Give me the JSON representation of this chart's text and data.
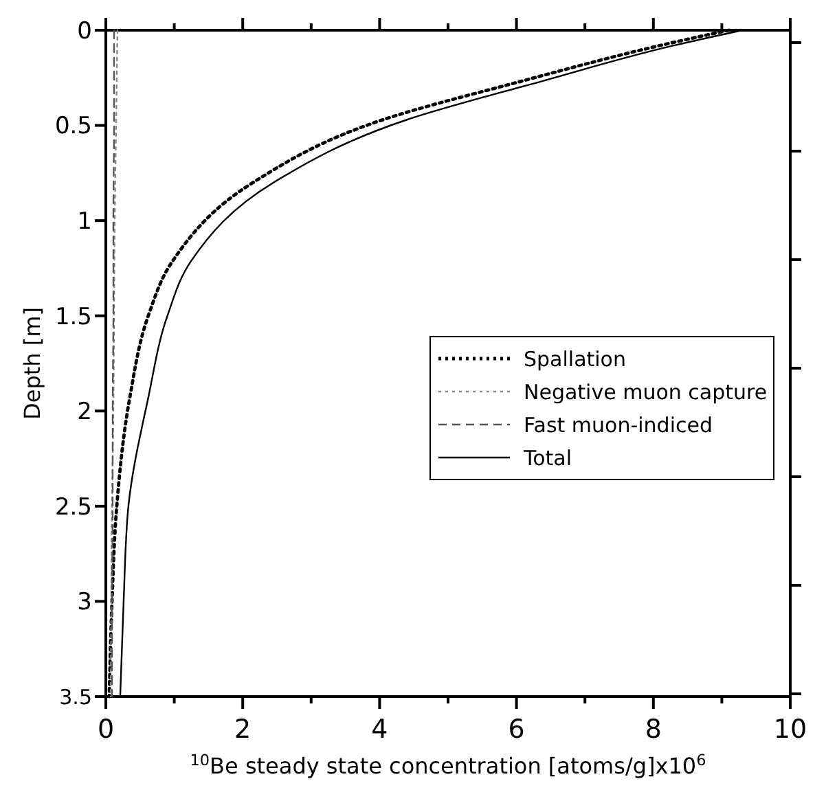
{
  "chart_data": {
    "type": "line",
    "xlabel": "$^{10}$Be steady state concentration [atoms/g]x10$^{6}$",
    "ylabel": "Depth [m]",
    "xlim": [
      0,
      10
    ],
    "xticks": [
      0,
      {
        "value": 1,
        "label": null
      },
      2,
      {
        "value": 3,
        "label": null
      },
      4,
      {
        "value": 5,
        "label": null
      },
      6,
      {
        "value": 7,
        "label": null
      },
      8,
      {
        "value": 9,
        "label": null
      },
      10
    ],
    "ylim": [
      3.5,
      0
    ],
    "yticks": [
      0,
      0.5,
      1,
      1.5,
      2,
      2.5,
      3,
      3.5
    ],
    "tick_labels": "xy",
    "grid": false,
    "legend": "right",
    "marker": "none",
    "series": [
      {
        "name": "Spallation",
        "color": "#000000",
        "line_style": "dotted",
        "x": [
          9.1,
          8.1,
          6.05,
          4.05,
          2.15,
          0.98,
          0.62,
          0.35,
          0.16,
          0.09,
          0.05
        ],
        "values": [
          0,
          0.08,
          0.27,
          0.47,
          0.8,
          1.21,
          1.5,
          1.93,
          2.5,
          3.0,
          3.5
        ]
      },
      {
        "name": "Negative muon capture",
        "color": "#888888",
        "line_style": "dotted",
        "x": [
          0.17,
          0.15,
          0.13,
          0.12,
          0.11,
          0.09,
          0.08,
          0.07
        ],
        "values": [
          0,
          0.5,
          1,
          1.5,
          2,
          2.5,
          3,
          3.5
        ]
      },
      {
        "name": "Fast muon-indiced",
        "color": "#555555",
        "line_style": "dashed",
        "x": [
          0.12,
          0.12,
          0.11,
          0.11,
          0.1,
          0.1,
          0.09,
          0.09
        ],
        "values": [
          0,
          0.5,
          1,
          1.5,
          2,
          2.5,
          3,
          3.5
        ]
      },
      {
        "name": "Total",
        "color": "#000000",
        "line_style": "solid",
        "x": [
          9.3,
          8.3,
          6.35,
          4.4,
          2.45,
          1.25,
          0.9,
          0.62,
          0.33,
          0.26,
          0.21
        ],
        "values": [
          0,
          0.08,
          0.27,
          0.47,
          0.8,
          1.21,
          1.5,
          1.93,
          2.5,
          3.0,
          3.5
        ]
      }
    ]
  }
}
